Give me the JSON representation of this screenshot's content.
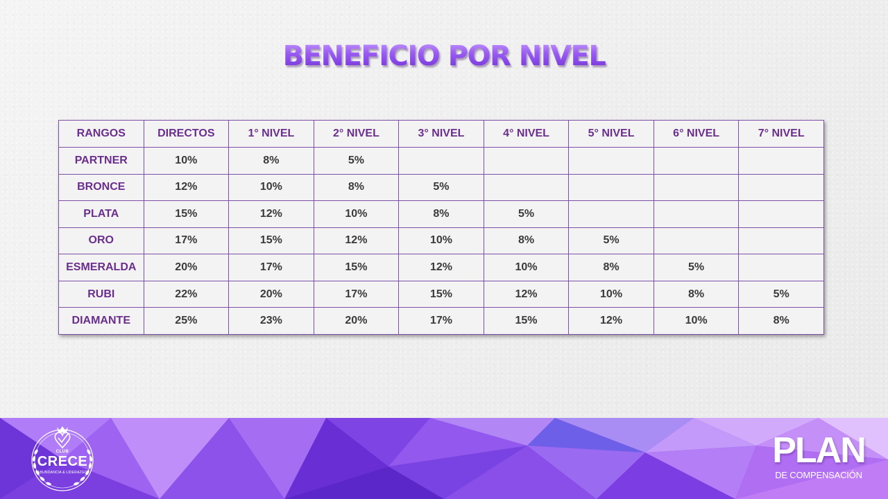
{
  "title": "BENEFICIO POR NIVEL",
  "table": {
    "headers": [
      "RANGOS",
      "DIRECTOS",
      "1° NIVEL",
      "2° NIVEL",
      "3° NIVEL",
      "4° NIVEL",
      "5° NIVEL",
      "6° NIVEL",
      "7° NIVEL"
    ],
    "rows": [
      {
        "rank": "PARTNER",
        "values": [
          "10%",
          "8%",
          "5%",
          "",
          "",
          "",
          "",
          ""
        ]
      },
      {
        "rank": "BRONCE",
        "values": [
          "12%",
          "10%",
          "8%",
          "5%",
          "",
          "",
          "",
          ""
        ]
      },
      {
        "rank": "PLATA",
        "values": [
          "15%",
          "12%",
          "10%",
          "8%",
          "5%",
          "",
          "",
          ""
        ]
      },
      {
        "rank": "ORO",
        "values": [
          "17%",
          "15%",
          "12%",
          "10%",
          "8%",
          "5%",
          "",
          ""
        ]
      },
      {
        "rank": "ESMERALDA",
        "values": [
          "20%",
          "17%",
          "15%",
          "12%",
          "10%",
          "8%",
          "5%",
          ""
        ]
      },
      {
        "rank": "RUBI",
        "values": [
          "22%",
          "20%",
          "17%",
          "15%",
          "12%",
          "10%",
          "8%",
          "5%"
        ]
      },
      {
        "rank": "DIAMANTE",
        "values": [
          "25%",
          "23%",
          "20%",
          "17%",
          "15%",
          "12%",
          "10%",
          "8%"
        ]
      }
    ]
  },
  "logo": {
    "club": "CLUB",
    "name": "CRECE",
    "tagline": "ABUNDANCIA & LIDERAZGO",
    "icon": "laurel-wreath-heart-icon"
  },
  "brand": {
    "plan": "PLAN",
    "subtitle": "DE COMPENSACIÓN"
  },
  "colors": {
    "title_purple": "#8a48e6",
    "table_border": "#7d4fa8",
    "rank_text": "#6a2e8c",
    "value_text": "#3a3a3a",
    "footer_base": "#8a52ea"
  }
}
